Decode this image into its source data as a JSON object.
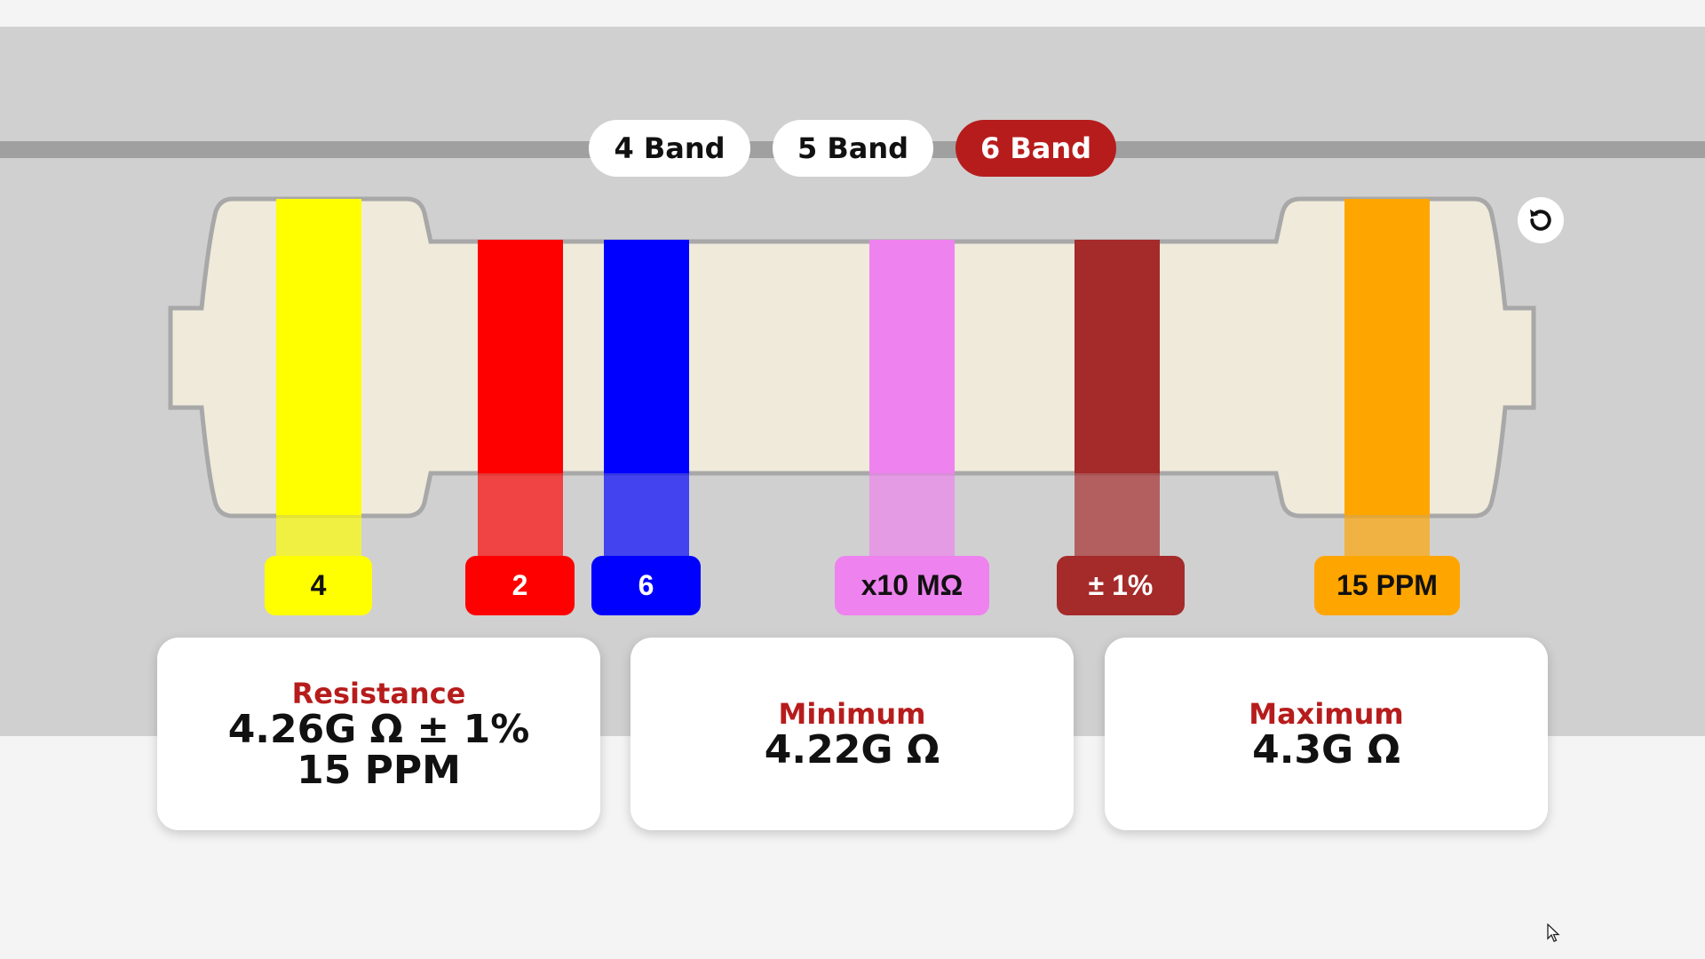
{
  "band_tabs": [
    {
      "label": "4 Band",
      "active": false
    },
    {
      "label": "5 Band",
      "active": false
    },
    {
      "label": "6 Band",
      "active": true
    }
  ],
  "colors": {
    "accent": "#b71c1c",
    "resistor_body": "#f0eadb",
    "resistor_outline": "#a8a8a8",
    "panel": "#d0d0d0",
    "lead": "#a0a0a0"
  },
  "bands": [
    {
      "name": "first-digit",
      "label": "4",
      "color": "#ffff00",
      "label_bg": "#ffff00",
      "text_color": "#111111"
    },
    {
      "name": "second-digit",
      "label": "2",
      "color": "#ff0000",
      "label_bg": "#ff0000",
      "text_color": "#ffffff"
    },
    {
      "name": "third-digit",
      "label": "6",
      "color": "#0000ff",
      "label_bg": "#0000ff",
      "text_color": "#ffffff"
    },
    {
      "name": "multiplier",
      "label": "x10 MΩ",
      "color": "#ee82ee",
      "label_bg": "#ee82ee",
      "text_color": "#111111"
    },
    {
      "name": "tolerance",
      "label": "± 1%",
      "color": "#a52a2a",
      "label_bg": "#a52a2a",
      "text_color": "#ffffff"
    },
    {
      "name": "temp-coefficient",
      "label": "15 PPM",
      "color": "#ffa500",
      "label_bg": "#ffa500",
      "text_color": "#111111"
    }
  ],
  "reset_icon": "reset-icon",
  "results": {
    "resistance": {
      "title": "Resistance",
      "line1": "4.26G Ω ± 1%",
      "line2": "15 PPM"
    },
    "minimum": {
      "title": "Minimum",
      "value": "4.22G Ω"
    },
    "maximum": {
      "title": "Maximum",
      "value": "4.3G Ω"
    }
  }
}
